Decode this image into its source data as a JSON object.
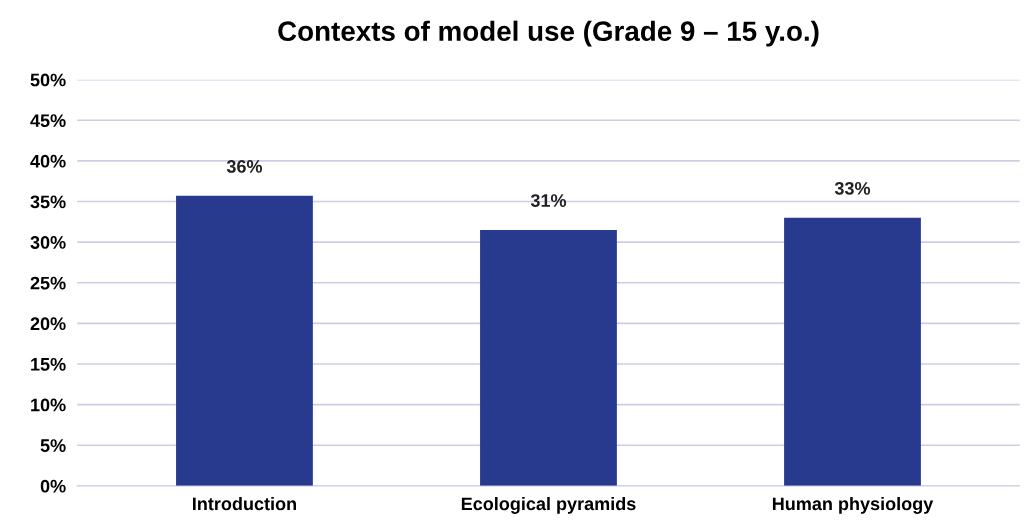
{
  "chart_data": {
    "type": "bar",
    "title": "Contexts of model use (Grade 9 – 15 y.o.)",
    "categories": [
      "Introduction",
      "Ecological pyramids",
      "Human physiology"
    ],
    "values": [
      35.7,
      31.5,
      33.0
    ],
    "color": "#283a8e",
    "value_labels": [
      "36%",
      "31%",
      "33%"
    ],
    "ylim": [
      0,
      50
    ],
    "yticks": [
      {
        "value": 0,
        "label": "0%"
      },
      {
        "value": 5,
        "label": "5%"
      },
      {
        "value": 10,
        "label": "10%"
      },
      {
        "value": 15,
        "label": "15%"
      },
      {
        "value": 20,
        "label": "20%"
      },
      {
        "value": 25,
        "label": "25%"
      },
      {
        "value": 30,
        "label": "30%"
      },
      {
        "value": 35,
        "label": "35%"
      },
      {
        "value": 40,
        "label": "40%"
      },
      {
        "value": 45,
        "label": "45%"
      },
      {
        "value": 50,
        "label": "50%"
      }
    ],
    "grid": "y",
    "legend": false
  }
}
